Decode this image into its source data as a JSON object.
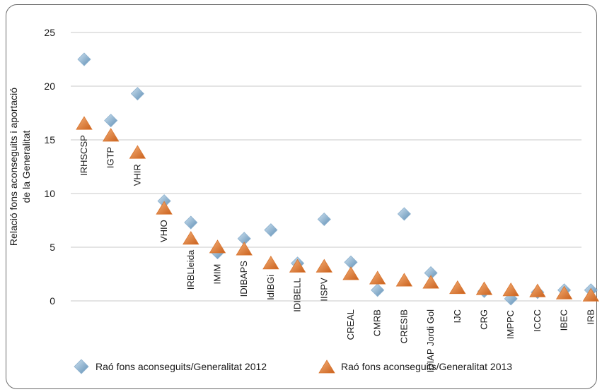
{
  "chart_data": {
    "type": "scatter",
    "ylabel_lines": [
      "Relació fons aconseguits i aportació",
      "de la Generalitat"
    ],
    "ylim": [
      0,
      25
    ],
    "yticks": [
      0,
      5,
      10,
      15,
      20,
      25
    ],
    "grid": true,
    "categories": [
      "IRHSCSP",
      "IGTP",
      "VHIR",
      "VHIO",
      "IRBLleida",
      "IMIM",
      "IDIBAPS",
      "IdIBGi",
      "IDIBELL",
      "IISPV",
      "CREAL",
      "CMRB",
      "CRESIB",
      "IDIAP Jordi Gol",
      "IJC",
      "CRG",
      "IMPPC",
      "ICCC",
      "IBEC",
      "IRB"
    ],
    "series": [
      {
        "name": "Raó fons aconseguits/Generalitat 2012",
        "marker": "diamond",
        "color": "#7fa8c9",
        "values": [
          22.5,
          16.8,
          19.3,
          9.3,
          7.3,
          4.5,
          5.8,
          6.6,
          3.5,
          7.6,
          3.6,
          1.0,
          8.1,
          2.6,
          null,
          0.9,
          0.2,
          0.8,
          1.0,
          1.0
        ]
      },
      {
        "name": "Raó fons aconseguits/Generalitat 2013",
        "marker": "triangle",
        "color": "#e07b2a",
        "values": [
          16.5,
          15.4,
          13.8,
          8.6,
          5.8,
          5.0,
          4.8,
          3.5,
          3.2,
          3.2,
          2.5,
          2.1,
          1.9,
          1.7,
          1.2,
          1.1,
          1.0,
          0.9,
          0.7,
          0.5
        ]
      }
    ],
    "legend_position": "bottom"
  }
}
